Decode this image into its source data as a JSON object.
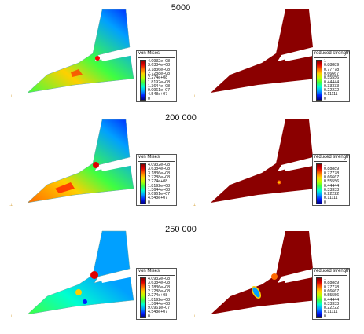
{
  "rows": [
    {
      "title": "5000"
    },
    {
      "title": "200 000"
    },
    {
      "title": "250 000"
    }
  ],
  "legend_left": {
    "title": "von Mises",
    "ticks": [
      "4.0932e+08",
      "3.6384e+08",
      "3.1836e+08",
      "2.7288e+08",
      "2.274e+08",
      "1.8192e+08",
      "1.3644e+08",
      "9.0961e+07",
      "4.548e+07",
      "0"
    ]
  },
  "legend_right": {
    "title": "reduced strength",
    "ticks": [
      "1",
      "0.88889",
      "0.77778",
      "0.66667",
      "0.55556",
      "0.44444",
      "0.33333",
      "0.22222",
      "0.11111",
      "0"
    ]
  },
  "colors": {
    "colormap": [
      "#8a0000",
      "#e00000",
      "#ff6a00",
      "#ffd000",
      "#b8ff00",
      "#40ff40",
      "#00ffd0",
      "#00a0ff",
      "#0020ff",
      "#000080"
    ],
    "dark_red": "#8b0000"
  }
}
